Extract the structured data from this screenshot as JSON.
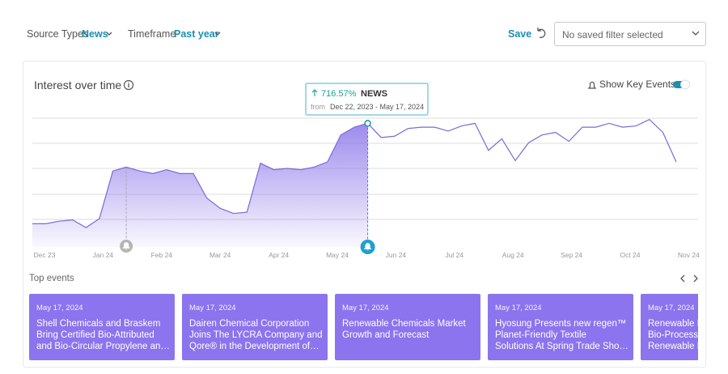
{
  "filters": {
    "source_label": "Source Types",
    "source_value": "News",
    "timeframe_label": "Timeframe",
    "timeframe_value": "Past year",
    "save": "Save",
    "saved_filter": "No saved filter selected"
  },
  "card": {
    "title": "Interest over time",
    "key_events_toggle": "Show Key Events"
  },
  "chart_data": {
    "type": "line",
    "x_axis_labels": [
      "Dec 23",
      "Jan 24",
      "Feb 24",
      "Mar 24",
      "Apr 24",
      "May 24",
      "Jun 24",
      "Jul 24",
      "Aug 24",
      "Sep 24",
      "Oct 24",
      "Nov 24"
    ],
    "series": [
      {
        "name": "NEWS",
        "color": "#7a6ad6",
        "values": [
          18,
          18,
          20,
          21,
          15,
          22,
          59,
          62,
          59,
          57,
          60,
          57,
          57,
          38,
          30,
          26,
          27,
          65,
          60,
          61,
          60,
          62,
          66,
          87,
          93,
          96,
          85,
          86,
          92,
          93,
          93,
          90,
          94,
          96,
          75,
          84,
          67,
          81,
          87,
          89,
          82,
          93,
          93,
          96,
          93,
          94,
          99,
          89,
          66
        ]
      }
    ],
    "ylim": [
      0,
      100
    ],
    "tooltip": {
      "change": "716.57%",
      "from": "from",
      "range": "Dec 22, 2023 - May 17, 2024"
    }
  },
  "events": {
    "title": "Top events",
    "items": [
      {
        "date": "May 17, 2024",
        "lines": [
          "Shell Chemicals and Braskem",
          "Bring Certified Bio-Attributed",
          "and Bio-Circular Propylene an…"
        ]
      },
      {
        "date": "May 17, 2024",
        "lines": [
          "Dairen Chemical Corporation",
          "Joins The LYCRA Company and",
          "Qore® in the Development of…"
        ]
      },
      {
        "date": "May 17, 2024",
        "lines": [
          "Renewable Chemicals Market",
          "Growth and Forecast"
        ]
      },
      {
        "date": "May 17, 2024",
        "lines": [
          "Hyosung Presents new regen™",
          "Planet-Friendly Textile",
          "Solutions At Spring Trade Sho…"
        ]
      },
      {
        "date": "May 17, 2024",
        "lines": [
          "Renewable L",
          "Bio-Process",
          "Renewable L"
        ]
      }
    ]
  }
}
